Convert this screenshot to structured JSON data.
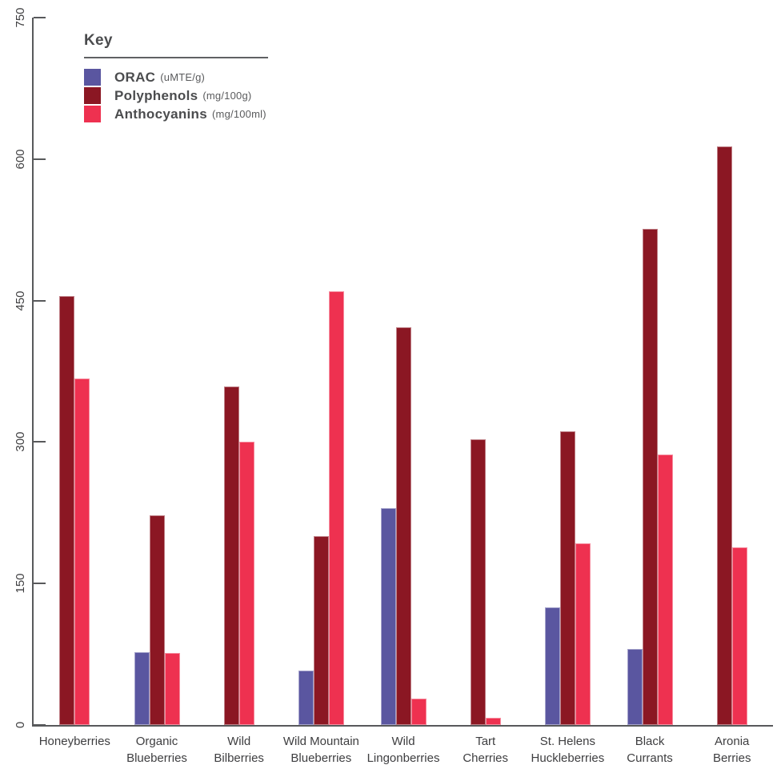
{
  "legend": {
    "title": "Key"
  },
  "chart_data": {
    "type": "bar",
    "title": "",
    "xlabel": "",
    "ylabel": "",
    "ylim": [
      0,
      750
    ],
    "yticks": [
      0,
      150,
      300,
      450,
      600,
      750
    ],
    "grid": false,
    "legend_position": "top-left",
    "axis_color": "#58595b",
    "text_color": "#404042",
    "categories": [
      "Honeyberries",
      "Organic\nBlueberries",
      "Wild\nBilberries",
      "Wild Mountain\nBlueberries",
      "Wild\nLingonberries",
      "Tart\nCherries",
      "St. Helens\nHuckleberries",
      "Black\nCurrants",
      "Aronia\nBerries"
    ],
    "series": [
      {
        "name": "ORAC",
        "unit": "(uMTE/g)",
        "color": "#5a56a0",
        "values": [
          0,
          77,
          0,
          58,
          230,
          0,
          125,
          81,
          0
        ]
      },
      {
        "name": "Polyphenols",
        "unit": "(mg/100g)",
        "color": "#8b1723",
        "values": [
          455,
          222,
          359,
          200,
          422,
          303,
          311,
          526,
          613
        ]
      },
      {
        "name": "Anthocyanins",
        "unit": "(mg/100ml)",
        "color": "#ee3150",
        "values": [
          367,
          76,
          300,
          460,
          28,
          8,
          193,
          287,
          188
        ]
      }
    ]
  }
}
